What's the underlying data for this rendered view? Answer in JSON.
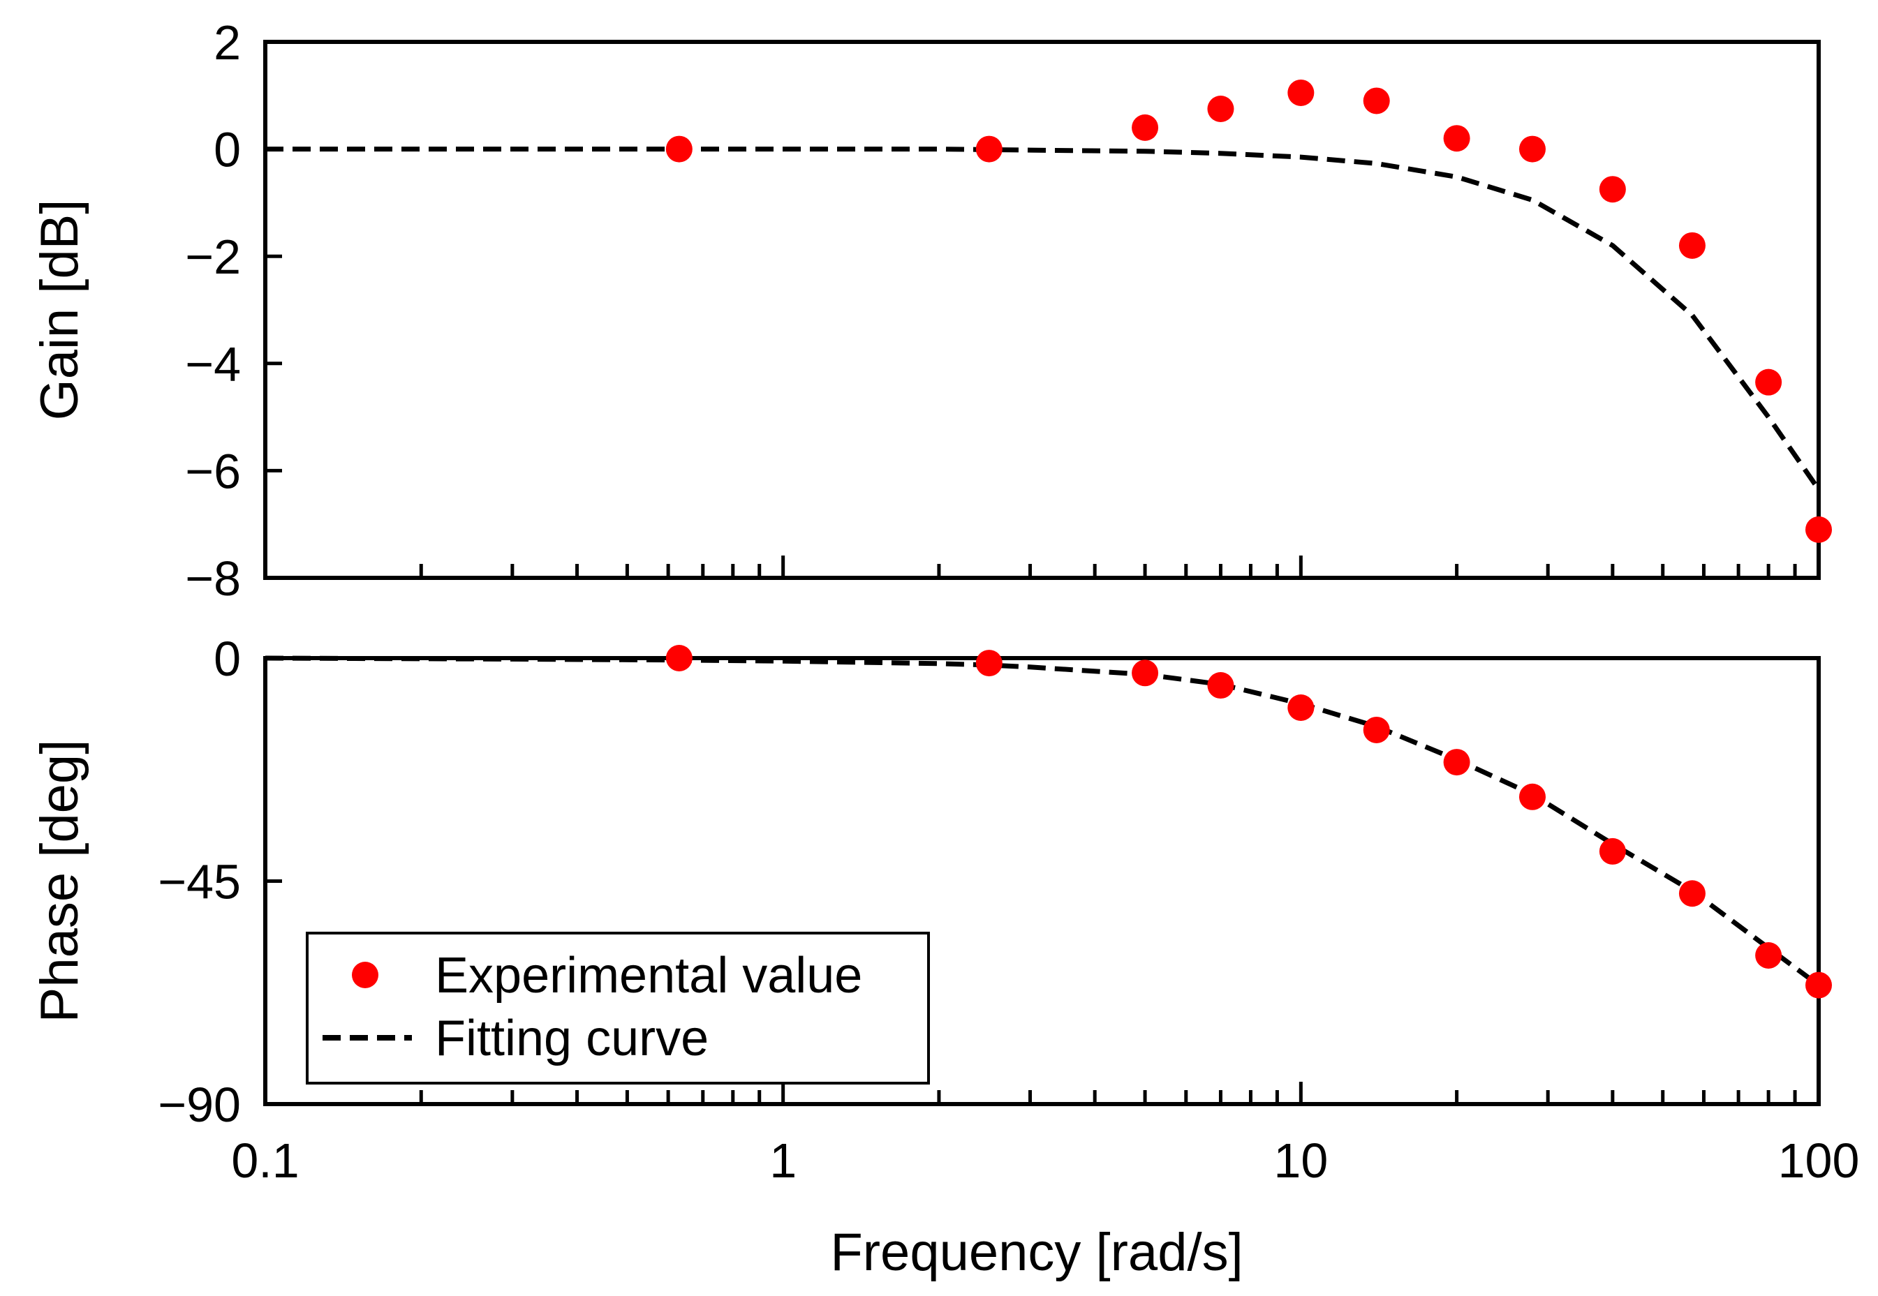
{
  "chart_data": [
    {
      "type": "scatter",
      "panel": "gain",
      "xscale": "log",
      "xlim": [
        0.1,
        100
      ],
      "ylim": [
        -8,
        2
      ],
      "ylabel": "Gain [dB]",
      "xlabel": "",
      "yticks": [
        2,
        0,
        -2,
        -4,
        -6,
        -8
      ],
      "ytick_labels": [
        "2",
        "0",
        "−2",
        "−4",
        "−6",
        "−8"
      ],
      "grid": false,
      "series": [
        {
          "name": "Experimental value",
          "kind": "points",
          "x": [
            0.63,
            2.5,
            5,
            7,
            10,
            14,
            20,
            28,
            40,
            57,
            80,
            100
          ],
          "y": [
            0,
            0,
            0.4,
            0.75,
            1.05,
            0.9,
            0.2,
            0,
            -0.75,
            -1.8,
            -4.35,
            -7.1
          ]
        },
        {
          "name": "Fitting curve",
          "kind": "dashed-line",
          "x": [
            0.1,
            0.3,
            1,
            2,
            3,
            5,
            7,
            10,
            14,
            20,
            28,
            40,
            57,
            80,
            100
          ],
          "y": [
            0,
            0,
            0,
            0,
            -0.02,
            -0.04,
            -0.08,
            -0.15,
            -0.27,
            -0.52,
            -0.95,
            -1.8,
            -3.1,
            -5.0,
            -6.35
          ]
        }
      ]
    },
    {
      "type": "scatter",
      "panel": "phase",
      "xscale": "log",
      "xlim": [
        0.1,
        100
      ],
      "ylim": [
        -90,
        0
      ],
      "ylabel": "Phase [deg]",
      "xlabel": "Frequency [rad/s]",
      "yticks": [
        0,
        -45,
        -90
      ],
      "ytick_labels": [
        "0",
        "−45",
        "−90"
      ],
      "xticks": [
        0.1,
        1,
        10,
        100
      ],
      "xtick_labels": [
        "0.1",
        "1",
        "10",
        "100"
      ],
      "grid": false,
      "legend": {
        "placement": "bottom-left",
        "entries": [
          "Experimental value",
          "Fitting curve"
        ]
      },
      "series": [
        {
          "name": "Experimental value",
          "kind": "points",
          "x": [
            0.63,
            2.5,
            5,
            7,
            10,
            14,
            20,
            28,
            40,
            57,
            80,
            100
          ],
          "y": [
            0,
            -1,
            -3,
            -5.5,
            -10,
            -14.5,
            -21,
            -28,
            -39,
            -47.5,
            -60,
            -66
          ]
        },
        {
          "name": "Fitting curve",
          "kind": "dashed-line",
          "x": [
            0.1,
            0.3,
            0.63,
            1,
            2,
            2.5,
            3,
            5,
            7,
            10,
            14,
            20,
            28,
            40,
            57,
            80,
            100
          ],
          "y": [
            0,
            -0.2,
            -0.4,
            -0.6,
            -1.1,
            -1.4,
            -1.8,
            -3.3,
            -5.3,
            -9.2,
            -13.8,
            -20.5,
            -27.5,
            -37.5,
            -47,
            -58.5,
            -66
          ]
        }
      ]
    }
  ],
  "colors": {
    "points": "#ff0000",
    "fit_line": "#000000",
    "axes": "#000000",
    "background": "#ffffff"
  }
}
